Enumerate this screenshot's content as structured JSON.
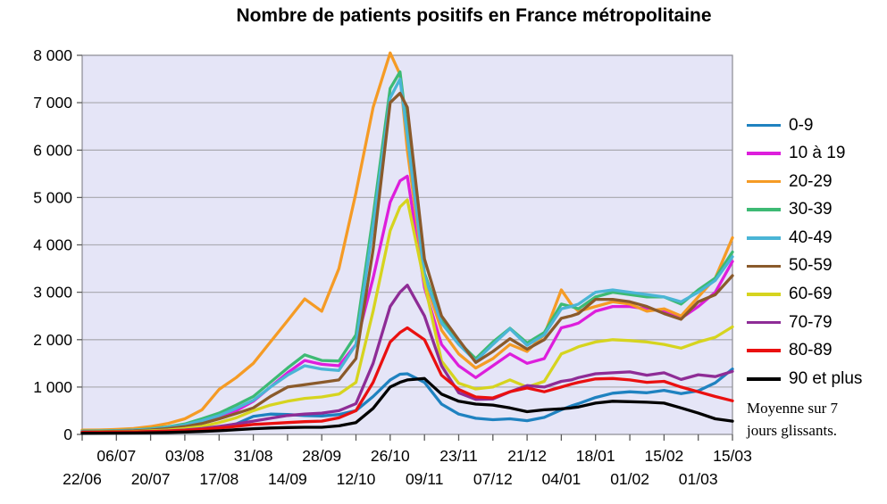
{
  "title": "Nombre de patients positifs en France métropolitaine",
  "note": {
    "line1": "Moyenne sur 7",
    "line2": "jours glissants."
  },
  "chart_data": {
    "type": "line",
    "title": "Nombre de patients positifs en France métropolitaine",
    "grid": true,
    "legend_position": "right",
    "plot_bg": "#e5e5f7",
    "grid_color": "#aeaeb6",
    "frame_color": "#8a8a92",
    "tick_color": "#5a5a5a",
    "y_axis": {
      "min": 0,
      "max": 8000,
      "step": 1000,
      "tick_labels": [
        "0",
        "1 000",
        "2 000",
        "3 000",
        "4 000",
        "5 000",
        "6 000",
        "7 000",
        "8 000"
      ]
    },
    "x_axis": {
      "start_date": "22/06",
      "end_date": "15/03",
      "tick_spacing_days": 14,
      "total_days": 266,
      "upper_row_labels": [
        "06/07",
        "03/08",
        "31/08",
        "28/09",
        "26/10",
        "23/11",
        "21/12",
        "18/01",
        "15/02",
        "15/03"
      ],
      "upper_row_days": [
        14,
        42,
        70,
        98,
        126,
        154,
        182,
        210,
        238,
        266
      ],
      "lower_row_labels": [
        "22/06",
        "20/07",
        "17/08",
        "14/09",
        "12/10",
        "09/11",
        "07/12",
        "04/01",
        "01/02",
        "01/03"
      ],
      "lower_row_days": [
        0,
        28,
        56,
        84,
        112,
        140,
        168,
        196,
        224,
        252
      ]
    },
    "x_days": [
      0,
      7,
      14,
      21,
      28,
      35,
      42,
      49,
      56,
      63,
      70,
      77,
      84,
      91,
      98,
      105,
      112,
      119,
      126,
      130,
      133,
      140,
      147,
      154,
      161,
      168,
      175,
      182,
      189,
      196,
      200,
      203,
      210,
      217,
      224,
      231,
      238,
      245,
      252,
      259,
      266
    ],
    "series": [
      {
        "name": "0-9",
        "color": "#1f82c0",
        "values": [
          35,
          40,
          45,
          50,
          60,
          75,
          95,
          120,
          150,
          220,
          380,
          430,
          420,
          400,
          390,
          420,
          500,
          800,
          1150,
          1270,
          1280,
          1100,
          640,
          430,
          340,
          310,
          330,
          290,
          360,
          520,
          600,
          650,
          780,
          870,
          900,
          880,
          930,
          860,
          920,
          1090,
          1380
        ]
      },
      {
        "name": "10 à 19",
        "color": "#dd1edc",
        "values": [
          55,
          60,
          65,
          75,
          90,
          120,
          160,
          230,
          340,
          500,
          700,
          1000,
          1300,
          1560,
          1480,
          1450,
          1900,
          3300,
          4900,
          5350,
          5450,
          3100,
          1900,
          1450,
          1200,
          1450,
          1700,
          1500,
          1600,
          2250,
          2300,
          2350,
          2600,
          2700,
          2700,
          2650,
          2600,
          2450,
          2700,
          3000,
          3650
        ]
      },
      {
        "name": "20-29",
        "color": "#f59b25",
        "values": [
          90,
          95,
          105,
          125,
          165,
          230,
          330,
          520,
          950,
          1200,
          1500,
          1950,
          2400,
          2860,
          2600,
          3500,
          5100,
          6900,
          8050,
          7600,
          6000,
          3300,
          2200,
          1700,
          1400,
          1600,
          1900,
          1750,
          2100,
          3050,
          2750,
          2600,
          2700,
          2800,
          2750,
          2600,
          2650,
          2500,
          2900,
          3300,
          4150
        ]
      },
      {
        "name": "30-39",
        "color": "#3dba74",
        "values": [
          70,
          75,
          80,
          95,
          120,
          160,
          220,
          330,
          450,
          620,
          800,
          1100,
          1400,
          1680,
          1560,
          1550,
          2100,
          4600,
          7300,
          7650,
          6400,
          3400,
          2400,
          1950,
          1600,
          1950,
          2240,
          1930,
          2150,
          2750,
          2700,
          2650,
          2900,
          3000,
          2950,
          2900,
          2900,
          2750,
          3050,
          3300,
          3850
        ]
      },
      {
        "name": "40-49",
        "color": "#4ab5d6",
        "values": [
          65,
          70,
          75,
          90,
          110,
          150,
          200,
          290,
          400,
          550,
          720,
          1000,
          1250,
          1450,
          1380,
          1350,
          1900,
          4400,
          7100,
          7500,
          6300,
          3350,
          2350,
          1900,
          1550,
          1900,
          2230,
          1880,
          2100,
          2650,
          2700,
          2750,
          3000,
          3050,
          3000,
          2950,
          2900,
          2800,
          3000,
          3250,
          3750
        ]
      },
      {
        "name": "50-59",
        "color": "#8a5a2b",
        "values": [
          55,
          60,
          65,
          75,
          95,
          125,
          165,
          230,
          330,
          440,
          560,
          800,
          1000,
          1050,
          1100,
          1150,
          1600,
          3900,
          7000,
          7200,
          6900,
          3700,
          2500,
          2000,
          1520,
          1750,
          2020,
          1800,
          2000,
          2450,
          2500,
          2550,
          2850,
          2850,
          2800,
          2700,
          2550,
          2430,
          2800,
          2950,
          3350
        ]
      },
      {
        "name": "60-69",
        "color": "#d6d41f",
        "values": [
          45,
          48,
          52,
          60,
          75,
          95,
          125,
          170,
          250,
          350,
          500,
          620,
          700,
          760,
          790,
          850,
          1100,
          2600,
          4300,
          4800,
          4950,
          3200,
          1550,
          1080,
          960,
          1000,
          1150,
          1000,
          1120,
          1700,
          1780,
          1850,
          1950,
          2000,
          1980,
          1950,
          1900,
          1820,
          1950,
          2050,
          2270
        ]
      },
      {
        "name": "70-79",
        "color": "#8e2c96",
        "values": [
          40,
          42,
          45,
          50,
          60,
          75,
          95,
          125,
          170,
          220,
          280,
          340,
          400,
          430,
          450,
          500,
          650,
          1500,
          2700,
          3000,
          3150,
          2500,
          1450,
          880,
          740,
          750,
          900,
          1030,
          1000,
          1120,
          1150,
          1200,
          1280,
          1300,
          1320,
          1250,
          1300,
          1160,
          1260,
          1220,
          1330
        ]
      },
      {
        "name": "80-89",
        "color": "#ea1010",
        "values": [
          45,
          46,
          48,
          52,
          60,
          70,
          85,
          105,
          135,
          170,
          210,
          230,
          250,
          270,
          280,
          350,
          500,
          1100,
          1950,
          2150,
          2250,
          2000,
          1250,
          950,
          790,
          770,
          900,
          980,
          900,
          1000,
          1060,
          1100,
          1170,
          1180,
          1150,
          1100,
          1120,
          1000,
          900,
          800,
          710
        ]
      },
      {
        "name": "90 et plus",
        "color": "#000000",
        "values": [
          25,
          26,
          28,
          30,
          35,
          42,
          50,
          62,
          78,
          100,
          120,
          135,
          145,
          150,
          150,
          180,
          250,
          550,
          1000,
          1100,
          1150,
          1180,
          850,
          700,
          640,
          620,
          560,
          480,
          520,
          540,
          560,
          580,
          660,
          700,
          690,
          680,
          660,
          560,
          450,
          330,
          280
        ]
      }
    ]
  }
}
